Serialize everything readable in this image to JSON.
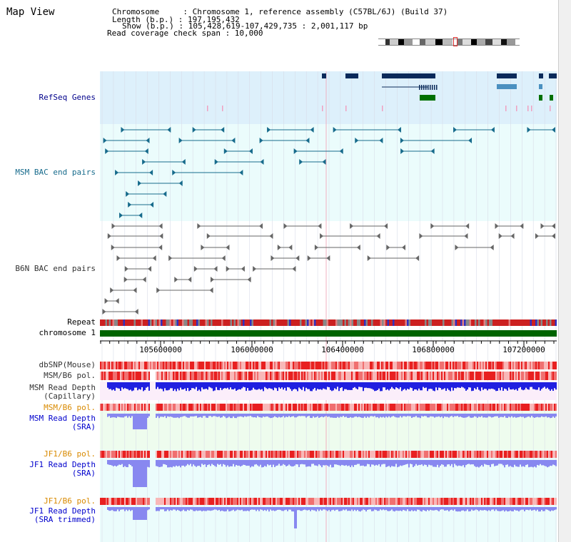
{
  "header": {
    "view_title": "Map View",
    "chromosome_line": "Chromosome     : Chromosome 1, reference assembly (C57BL/6J) (Build 37)",
    "length_line": "Length (b.p.) : 197,195,432",
    "show_line": "Show (b.p.) : 105,428,619-107,429,735 : 2,001,117 bp",
    "coverage_line": "Read coverage check span : 10,000"
  },
  "tracks": {
    "refseq": "RefSeq Genes",
    "msm_bac": "MSM BAC end pairs",
    "b6n_bac": "B6N BAC end pairs",
    "repeat": "Repeat",
    "chromosome": "chromosome 1",
    "dbsnp": "dbSNP(Mouse)",
    "msm_pol_1": "MSM/B6 pol.",
    "msm_depth_cap_1": "MSM Read Depth",
    "msm_depth_cap_2": "(Capillary)",
    "msm_pol_2": "MSM/B6 pol.",
    "msm_depth_sra_1": "MSM Read Depth",
    "msm_depth_sra_2": "(SRA)",
    "jf1_pol_1": "JF1/B6 pol.",
    "jf1_depth_sra_1": "JF1 Read Depth",
    "jf1_depth_sra_2": "(SRA)",
    "jf1_pol_2": "JF1/B6 pol.",
    "jf1_depth_trim_1": "JF1 Read Depth",
    "jf1_depth_trim_2": "(SRA trimmed)"
  },
  "axis": {
    "ticks": [
      "105600000",
      "106000000",
      "106400000",
      "106800000",
      "107200000"
    ]
  },
  "colors": {
    "refseq_bg": "#ddf0fb",
    "track_bg": "#ebfcfc",
    "sra_bg": "#eefcee",
    "chromosome": "#006400",
    "msm_bac": "#176b8c",
    "b6n_bac": "#666666",
    "depth_dark": "#2020e0",
    "depth_light": "#8888f0"
  }
}
